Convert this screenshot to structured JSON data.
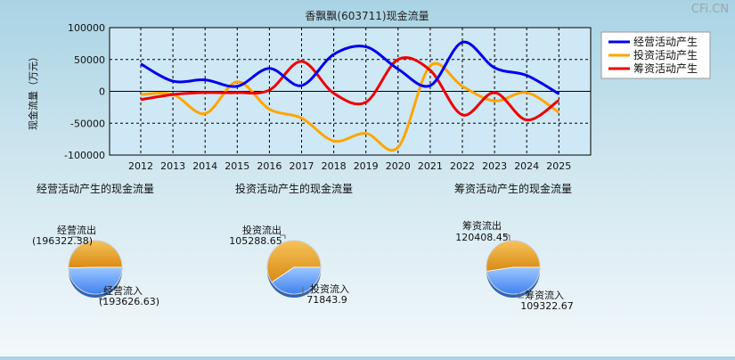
{
  "chart_data": [
    {
      "type": "line",
      "title": "香飘飘(603711)现金流量",
      "ylabel": "现金流量（万元）",
      "ylim": [
        -100000,
        100000
      ],
      "y_ticks": [
        "100000",
        "50000",
        "0",
        "-50000",
        "-100000"
      ],
      "grid": true,
      "legend_position": "top-right",
      "categories": [
        "2012",
        "2013",
        "2014",
        "2015",
        "2016",
        "2017",
        "2018",
        "2019",
        "2020",
        "2021",
        "2022",
        "2023",
        "2024",
        "2025"
      ],
      "series": [
        {
          "name": "经营活动产生",
          "color": "#0000ee",
          "values": [
            43000,
            16000,
            18000,
            8000,
            36000,
            9000,
            58000,
            70000,
            35000,
            9000,
            77000,
            37000,
            25000,
            -4000
          ]
        },
        {
          "name": "投资活动产生",
          "color": "#ffa500",
          "values": [
            -5000,
            -5000,
            -35000,
            15000,
            -28000,
            -42000,
            -78000,
            -66000,
            -88000,
            40000,
            8000,
            -15000,
            -2000,
            -33000
          ]
        },
        {
          "name": "筹资活动产生",
          "color": "#ee0000",
          "values": [
            -13000,
            -5000,
            -2000,
            -2000,
            2000,
            47000,
            -3000,
            -17000,
            50000,
            33000,
            -37000,
            -2000,
            -45000,
            -14000
          ]
        }
      ]
    },
    {
      "type": "pie",
      "title": "经营活动产生的现金流量",
      "slices": [
        {
          "label": "经营流出",
          "value": "(196322.38)",
          "amount": 196322.38,
          "color": "#f0a830"
        },
        {
          "label": "经营流入",
          "value": "(193626.63)",
          "amount": 193626.63,
          "color": "#5aa0ff"
        }
      ]
    },
    {
      "type": "pie",
      "title": "投资活动产生的现金流量",
      "slices": [
        {
          "label": "投资流出",
          "value": "105288.65",
          "amount": 105288.65,
          "color": "#f0a830"
        },
        {
          "label": "投资流入",
          "value": "71843.9",
          "amount": 71843.9,
          "color": "#5aa0ff"
        }
      ]
    },
    {
      "type": "pie",
      "title": "筹资活动产生的现金流量",
      "slices": [
        {
          "label": "筹资流出",
          "value": "120408.45",
          "amount": 120408.45,
          "color": "#f0a830"
        },
        {
          "label": "筹资流入",
          "value": "109322.67",
          "amount": 109322.67,
          "color": "#5aa0ff"
        }
      ]
    }
  ],
  "watermark": "CFi.CN"
}
